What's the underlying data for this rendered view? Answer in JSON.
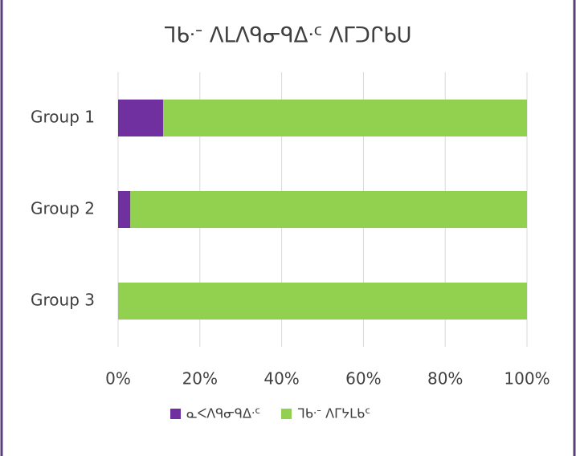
{
  "chart_data": {
    "type": "stacked_barh",
    "title": "ᒣᑲᐧᐨ ᐱᒪᐱᑫᓂᑫᐃᐧᑦ ᐱᒥᑐᒋᑲᑌ",
    "categories": [
      "Group 1",
      "Group 2",
      "Group 3"
    ],
    "series": [
      {
        "name": "ᓇᐸᐱᑫᓂᑫᐃᐧᑦ",
        "color": "#7030a0",
        "values": [
          11,
          3,
          0
        ]
      },
      {
        "name": "ᒣᑲᐧᐨ ᐱᒥᔭᒪᑲᑦ",
        "color": "#92d050",
        "values": [
          89,
          97,
          100
        ]
      }
    ],
    "xlim": [
      0,
      100
    ],
    "xticks": [
      {
        "value": 0,
        "label": "0%"
      },
      {
        "value": 20,
        "label": "20%"
      },
      {
        "value": 40,
        "label": "40%"
      },
      {
        "value": 60,
        "label": "60%"
      },
      {
        "value": 80,
        "label": "80%"
      },
      {
        "value": 100,
        "label": "100%"
      }
    ],
    "grid": true
  }
}
